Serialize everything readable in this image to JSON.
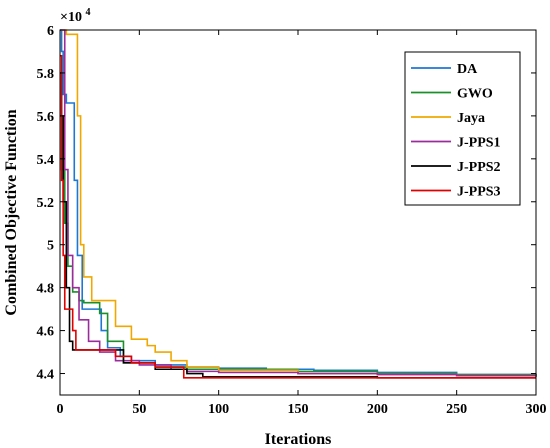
{
  "chart_data": {
    "type": "line",
    "xlabel": "Iterations",
    "ylabel": "Combined Objective Function",
    "xlim": [
      0,
      300
    ],
    "ylim": [
      4.3,
      6.0
    ],
    "y_multiplier": "×10^4",
    "y_multiplier_base": "×10",
    "y_multiplier_exp": "4",
    "x_ticks": [
      0,
      50,
      100,
      150,
      200,
      250,
      300
    ],
    "y_ticks": [
      4.4,
      4.6,
      4.8,
      5.0,
      5.2,
      5.4,
      5.6,
      5.8,
      6.0
    ],
    "x_tick_labels": [
      "0",
      "50",
      "100",
      "150",
      "200",
      "250",
      "300"
    ],
    "y_tick_labels": [
      "4.4",
      "4.6",
      "4.8",
      "5",
      "5.2",
      "5.4",
      "5.6",
      "5.8",
      "6"
    ],
    "grid": false,
    "legend_position": "top-right",
    "series": [
      {
        "name": "DA",
        "color": "#1f77d4",
        "x": [
          0,
          1,
          2,
          4,
          8,
          9,
          11,
          14,
          20,
          26,
          30,
          38,
          45,
          60,
          80,
          100,
          130,
          160,
          200,
          250,
          300
        ],
        "y": [
          6.0,
          5.9,
          5.7,
          5.66,
          5.66,
          5.3,
          4.95,
          4.7,
          4.7,
          4.6,
          4.52,
          4.48,
          4.46,
          4.44,
          4.43,
          4.425,
          4.42,
          4.415,
          4.405,
          4.395,
          4.385
        ]
      },
      {
        "name": "GWO",
        "color": "#1a8f2a",
        "x": [
          0,
          1,
          3,
          5,
          8,
          12,
          15,
          20,
          25,
          30,
          40,
          60,
          80,
          100,
          150,
          200,
          250,
          300
        ],
        "y": [
          5.6,
          5.35,
          5.1,
          4.9,
          4.78,
          4.74,
          4.73,
          4.73,
          4.68,
          4.55,
          4.45,
          4.43,
          4.42,
          4.42,
          4.41,
          4.4,
          4.395,
          4.39
        ]
      },
      {
        "name": "Jaya",
        "color": "#f0a800",
        "x": [
          0,
          2,
          4,
          9,
          11,
          13,
          15,
          20,
          28,
          35,
          45,
          55,
          60,
          70,
          80,
          100,
          150,
          200,
          250,
          300
        ],
        "y": [
          6.0,
          6.0,
          5.98,
          5.98,
          5.6,
          5.0,
          4.85,
          4.74,
          4.74,
          4.62,
          4.56,
          4.53,
          4.5,
          4.46,
          4.43,
          4.415,
          4.4,
          4.395,
          4.39,
          4.385
        ]
      },
      {
        "name": "J-PPS1",
        "color": "#9b2c9b",
        "x": [
          0,
          1,
          3,
          5,
          8,
          12,
          18,
          22,
          25,
          35,
          50,
          70,
          80,
          100,
          150,
          200,
          250,
          300
        ],
        "y": [
          6.0,
          6.0,
          5.35,
          4.95,
          4.8,
          4.65,
          4.55,
          4.55,
          4.5,
          4.46,
          4.44,
          4.42,
          4.41,
          4.405,
          4.4,
          4.395,
          4.39,
          4.385
        ]
      },
      {
        "name": "J-PPS2",
        "color": "#000000",
        "x": [
          0,
          1,
          2,
          4,
          6,
          8,
          10,
          12,
          30,
          40,
          60,
          80,
          90,
          100,
          150,
          200,
          300
        ],
        "y": [
          5.8,
          5.6,
          5.2,
          4.8,
          4.55,
          4.51,
          4.51,
          4.51,
          4.51,
          4.45,
          4.42,
          4.4,
          4.385,
          4.385,
          4.385,
          4.38,
          4.38
        ]
      },
      {
        "name": "J-PPS3",
        "color": "#e00000",
        "x": [
          0,
          1,
          2,
          3,
          7,
          8,
          10,
          28,
          35,
          45,
          60,
          77,
          78,
          100,
          150,
          200,
          250,
          300
        ],
        "y": [
          5.88,
          5.3,
          4.95,
          4.7,
          4.7,
          4.6,
          4.51,
          4.51,
          4.48,
          4.45,
          4.43,
          4.43,
          4.38,
          4.38,
          4.38,
          4.38,
          4.38,
          4.38
        ]
      }
    ]
  }
}
